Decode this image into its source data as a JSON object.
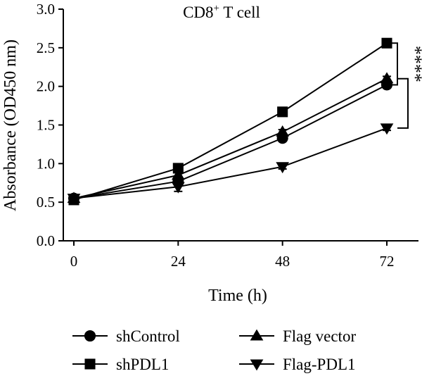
{
  "chart_data": {
    "type": "line",
    "title_main": "CD8",
    "title_sup": "+",
    "title_rest": " T cell",
    "xlabel": "Time (h)",
    "ylabel": "Absorbance (OD450 nm)",
    "x": [
      0,
      24,
      48,
      72
    ],
    "x_ticks": [
      "0",
      "24",
      "48",
      "72"
    ],
    "ylim": [
      0,
      3.0
    ],
    "y_ticks": [
      "0.0",
      "0.5",
      "1.0",
      "1.5",
      "2.0",
      "2.5",
      "3.0"
    ],
    "y_tick_values": [
      0,
      0.5,
      1.0,
      1.5,
      2.0,
      2.5,
      3.0
    ],
    "series": [
      {
        "name": "shControl",
        "marker": "circle",
        "values": [
          0.55,
          0.77,
          1.33,
          2.02
        ],
        "errors": [
          0.02,
          0.04,
          0.04,
          0.03
        ]
      },
      {
        "name": "shPDL1",
        "marker": "square",
        "values": [
          0.53,
          0.94,
          1.67,
          2.56
        ],
        "errors": [
          0.02,
          0.03,
          0.03,
          0.03
        ]
      },
      {
        "name": "Flag vector",
        "marker": "triangle-up",
        "values": [
          0.55,
          0.85,
          1.41,
          2.1
        ],
        "errors": [
          0.02,
          0.03,
          0.03,
          0.03
        ]
      },
      {
        "name": "Flag-PDL1",
        "marker": "triangle-down",
        "values": [
          0.55,
          0.7,
          0.96,
          1.46
        ],
        "errors": [
          0.02,
          0.06,
          0.03,
          0.03
        ]
      }
    ],
    "significance": [
      {
        "label": "****",
        "from": 2.56,
        "to": 2.02
      },
      {
        "label": "****",
        "from": 2.1,
        "to": 1.46
      }
    ],
    "legend": {
      "placement": "bottom",
      "columns": 2
    },
    "grid": false
  }
}
